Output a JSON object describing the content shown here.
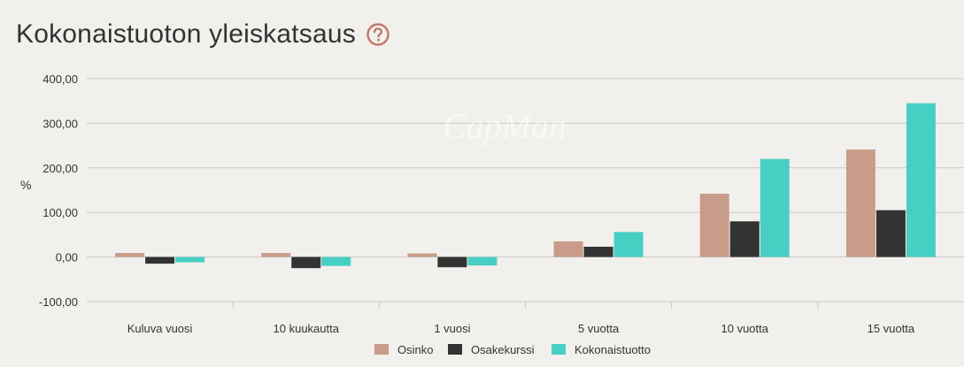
{
  "header": {
    "title": "Kokonaistuoton yleiskatsaus",
    "help_icon": "question-circle-icon"
  },
  "colors": {
    "Osinko": "#c99c8a",
    "Osakekurssi": "#333333",
    "Kokonaistuotto": "#48cfc4",
    "help_icon": "#c0796a",
    "grid": "#c9c9c9"
  },
  "watermark": "CapMan",
  "chart_data": {
    "type": "bar",
    "categories": [
      "Kuluva vuosi",
      "10 kuukautta",
      "1 vuosi",
      "5 vuotta",
      "10 vuotta",
      "15 vuotta"
    ],
    "series": [
      {
        "name": "Osinko",
        "values": [
          9,
          9,
          8,
          35,
          142,
          241
        ]
      },
      {
        "name": "Osakekurssi",
        "values": [
          -15,
          -25,
          -23,
          23,
          80,
          105
        ]
      },
      {
        "name": "Kokonaistuotto",
        "values": [
          -12,
          -20,
          -19,
          56,
          220,
          345
        ]
      }
    ],
    "ylabel": "%",
    "ylim": [
      -100,
      400
    ],
    "yticks": [
      -100,
      0,
      100,
      200,
      300,
      400
    ],
    "ytick_labels": [
      "-100,00",
      "0,00",
      "100,00",
      "200,00",
      "300,00",
      "400,00"
    ],
    "grid": true,
    "legend": "bottom-center"
  }
}
